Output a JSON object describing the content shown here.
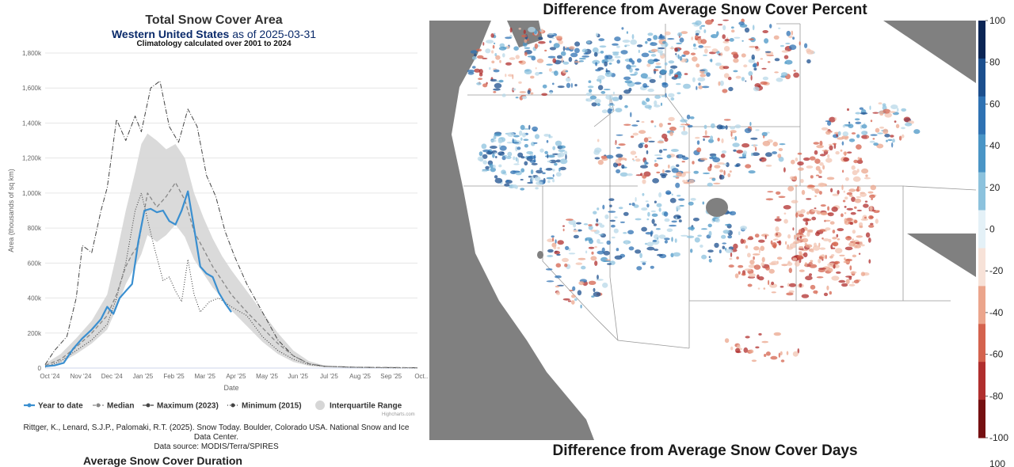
{
  "left_chart": {
    "title": "Total Snow Cover Area",
    "subtitle_region": "Western United States",
    "subtitle_date": "as of 2025-03-31",
    "climatology_note": "Climatology calculated over 2001 to 2024",
    "credit_line1": "Rittger, K., Lenard, S.J.P., Palomaki, R.T. (2025). Snow Today. Boulder, Colorado USA. National Snow and Ice Data Center.",
    "credit_line2": "Data source: MODIS/Terra/SPIRES",
    "highcharts_credit": "Highcharts.com",
    "next_panel_title_cut": "Average Snow Cover Duration"
  },
  "chart_data": [
    {
      "type": "line",
      "title": "Total Snow Cover Area",
      "xlabel": "Date",
      "ylabel": "Area (thousands of sq km)",
      "ylim": [
        0,
        1800
      ],
      "yticks": [
        0,
        200,
        400,
        600,
        800,
        1000,
        1200,
        1400,
        1600,
        1800
      ],
      "ytick_labels": [
        "0",
        "200k",
        "400k",
        "600k",
        "800k",
        "1,000k",
        "1,200k",
        "1,400k",
        "1,600k",
        "1,800k"
      ],
      "xlim": [
        0,
        12
      ],
      "x_tick_labels": [
        "Oct '24",
        "Nov '24",
        "Dec '24",
        "Jan '25",
        "Feb '25",
        "Mar '25",
        "Apr '25",
        "May '25",
        "Jun '25",
        "Jul '25",
        "Aug '25",
        "Sep '25",
        "Oct..."
      ],
      "grid": true,
      "legend_position": "bottom",
      "series": [
        {
          "name": "Year to date",
          "color": "#3a8fd0",
          "x": [
            0,
            0.3,
            0.6,
            0.9,
            1.2,
            1.5,
            1.8,
            2.0,
            2.2,
            2.4,
            2.6,
            2.8,
            3.0,
            3.2,
            3.4,
            3.6,
            3.8,
            4.0,
            4.2,
            4.4,
            4.6,
            4.8,
            5.0,
            5.2,
            5.4,
            5.6,
            5.8,
            6.0
          ],
          "values": [
            10,
            15,
            30,
            110,
            170,
            220,
            280,
            350,
            310,
            400,
            440,
            480,
            720,
            900,
            910,
            890,
            900,
            840,
            820,
            900,
            1010,
            800,
            580,
            540,
            520,
            430,
            370,
            320
          ]
        },
        {
          "name": "Median",
          "color": "#888888",
          "x": [
            0,
            0.5,
            1.0,
            1.5,
            2.0,
            2.3,
            2.6,
            2.8,
            3.0,
            3.3,
            3.6,
            3.9,
            4.2,
            4.5,
            4.8,
            5.1,
            5.4,
            5.7,
            6.0,
            6.5,
            7.0,
            7.5,
            8.0,
            8.5,
            9.0,
            10.0,
            11.0,
            12.0
          ],
          "values": [
            15,
            50,
            120,
            200,
            300,
            420,
            580,
            650,
            700,
            1000,
            920,
            980,
            1060,
            960,
            780,
            680,
            580,
            500,
            420,
            320,
            230,
            140,
            70,
            25,
            10,
            5,
            3,
            2
          ]
        },
        {
          "name": "Maximum (2023)",
          "color": "#444444",
          "x": [
            0,
            0.3,
            0.7,
            1.0,
            1.2,
            1.5,
            1.8,
            2.0,
            2.3,
            2.6,
            2.9,
            3.1,
            3.4,
            3.7,
            4.0,
            4.3,
            4.6,
            4.9,
            5.2,
            5.5,
            5.8,
            6.1,
            6.5,
            7.0,
            7.5,
            8.0,
            8.5,
            9.0,
            10.0,
            11.0,
            12.0
          ],
          "values": [
            20,
            100,
            180,
            400,
            700,
            660,
            900,
            1030,
            1420,
            1300,
            1440,
            1350,
            1600,
            1640,
            1380,
            1290,
            1480,
            1380,
            1100,
            980,
            780,
            640,
            480,
            320,
            160,
            70,
            25,
            10,
            5,
            3,
            2
          ]
        },
        {
          "name": "Minimum (2015)",
          "color": "#444444",
          "x": [
            0,
            0.5,
            1.0,
            1.5,
            2.0,
            2.3,
            2.6,
            2.9,
            3.1,
            3.3,
            3.5,
            3.8,
            4.0,
            4.2,
            4.4,
            4.6,
            4.8,
            5.0,
            5.3,
            5.6,
            6.0,
            6.5,
            7.0,
            7.5,
            8.0,
            8.5,
            9.0,
            10.0,
            11.0,
            12.0
          ],
          "values": [
            5,
            40,
            100,
            160,
            250,
            400,
            600,
            900,
            1000,
            850,
            700,
            500,
            520,
            440,
            380,
            620,
            420,
            320,
            380,
            400,
            350,
            300,
            180,
            100,
            50,
            20,
            10,
            4,
            2,
            1
          ]
        },
        {
          "name": "Interquartile Range",
          "color": "#d6d6d6",
          "x": [
            0,
            0.5,
            1.0,
            1.5,
            2.0,
            2.3,
            2.6,
            2.9,
            3.1,
            3.3,
            3.6,
            3.9,
            4.2,
            4.5,
            4.8,
            5.1,
            5.4,
            5.7,
            6.0,
            6.5,
            7.0,
            7.5,
            8.0,
            8.5,
            9.0,
            10.0,
            11.0,
            12.0
          ],
          "low": [
            5,
            30,
            80,
            140,
            220,
            340,
            480,
            580,
            650,
            760,
            720,
            760,
            820,
            750,
            620,
            540,
            460,
            400,
            330,
            240,
            150,
            80,
            35,
            12,
            5,
            2,
            1,
            0
          ],
          "high": [
            25,
            80,
            170,
            270,
            420,
            650,
            900,
            1120,
            1280,
            1340,
            1300,
            1250,
            1280,
            1200,
            1000,
            860,
            740,
            640,
            560,
            440,
            320,
            200,
            100,
            40,
            15,
            6,
            3,
            2
          ]
        }
      ]
    },
    {
      "type": "heatmap",
      "title": "Difference from Average Snow Cover Percent",
      "colorbar_ticks": [
        100,
        80,
        60,
        40,
        20,
        0,
        -20,
        -40,
        -60,
        -80,
        -100
      ],
      "colorbar_range": [
        -100,
        100
      ],
      "colorbar_colors": [
        "#0b2555",
        "#1c4f8e",
        "#2f72b3",
        "#4a95c6",
        "#8cc2dd",
        "#e4f1f7",
        "#f7e2d8",
        "#eba58c",
        "#d4634e",
        "#b02f2e",
        "#751012"
      ]
    },
    {
      "type": "heatmap",
      "title": "Difference from Average Snow Cover Days",
      "colorbar_ticks": [
        100
      ]
    }
  ]
}
